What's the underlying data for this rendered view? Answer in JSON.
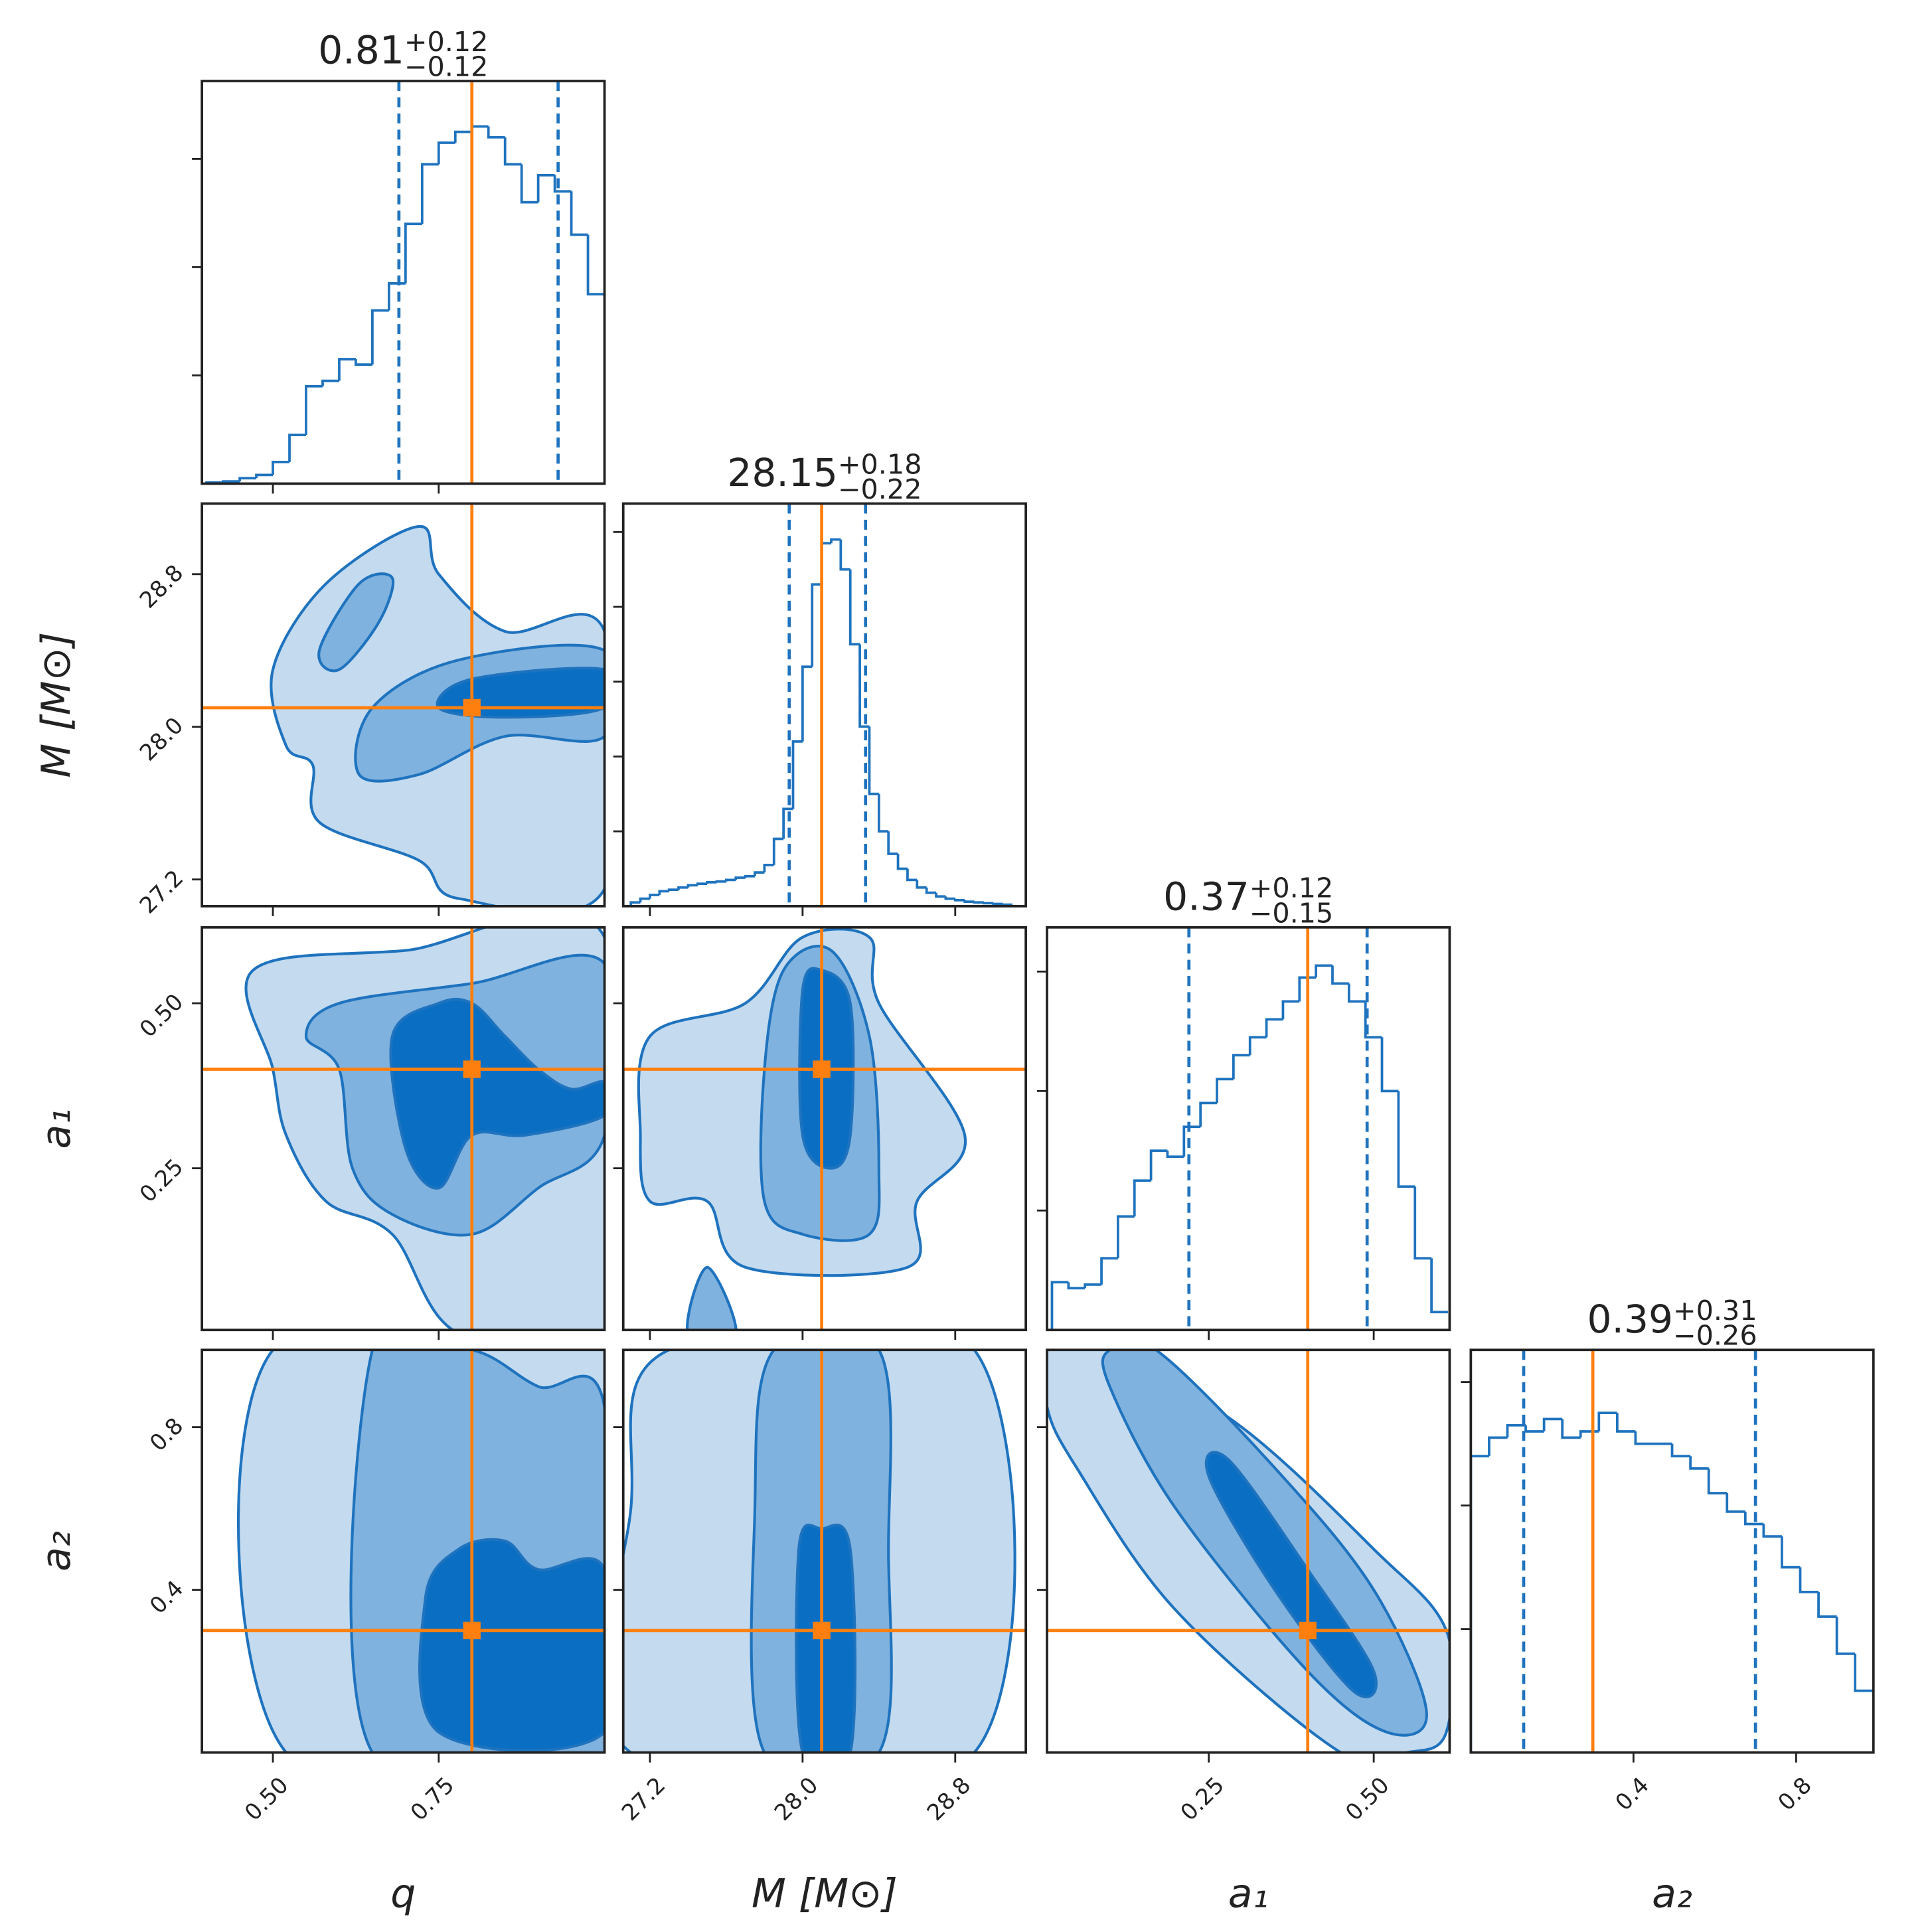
{
  "chart_data": {
    "type": "corner",
    "hist_color": "#1f73be",
    "truth_color": "#ff7f0e",
    "contour_line_color": "#1f73be",
    "contour_colors": [
      "#c3daef",
      "#7fb2de",
      "#0a6fc2"
    ],
    "parameters": [
      {
        "label": "q",
        "lim": [
          0.393,
          1.0
        ],
        "ticks": [
          {
            "value": 0.5,
            "label": "0.50"
          },
          {
            "value": 0.75,
            "label": "0.75"
          }
        ],
        "truth": 0.8
      },
      {
        "label": "M [M⊙]",
        "lim": [
          27.06,
          29.17
        ],
        "ticks": [
          27.2,
          {
            "value": 28,
            "label": "28.0"
          },
          28.8
        ],
        "truth": 28.1
      },
      {
        "label": "a₁",
        "lim": [
          0.005,
          0.615
        ],
        "ticks": [
          0.25,
          {
            "value": 0.5,
            "label": "0.50"
          }
        ],
        "truth": 0.4
      },
      {
        "label": "a₂",
        "lim": [
          0,
          0.99
        ],
        "ticks": [
          0.4,
          0.8
        ],
        "truth": 0.3
      }
    ],
    "histograms": [
      {
        "title": "0.81",
        "plus": "+0.12",
        "minus": "−0.12",
        "quantiles": [
          0.69,
          0.93
        ],
        "ylim": [
          0,
          3.72
        ],
        "yticks": [
          1,
          2,
          3
        ],
        "bins": [
          0.4,
          0.425,
          0.45,
          0.475,
          0.5,
          0.525,
          0.55,
          0.575,
          0.6,
          0.625,
          0.65,
          0.675,
          0.7,
          0.725,
          0.75,
          0.775,
          0.8,
          0.825,
          0.85,
          0.875,
          0.9,
          0.925,
          0.95,
          0.975,
          1.0
        ],
        "values": [
          0.01,
          0.02,
          0.05,
          0.08,
          0.2,
          0.45,
          0.9,
          0.95,
          1.15,
          1.1,
          1.6,
          1.85,
          2.4,
          2.95,
          3.15,
          3.25,
          3.3,
          3.2,
          2.95,
          2.6,
          2.85,
          2.7,
          2.3,
          1.75
        ]
      },
      {
        "title": "28.15",
        "plus": "+0.18",
        "minus": "−0.22",
        "quantiles": [
          27.93,
          28.33
        ],
        "ylim": [
          0,
          5.38
        ],
        "yticks": [
          1,
          2,
          3,
          4,
          5
        ],
        "bins": [
          27.1,
          27.15,
          27.2,
          27.25,
          27.3,
          27.35,
          27.4,
          27.45,
          27.5,
          27.55,
          27.6,
          27.65,
          27.7,
          27.75,
          27.8,
          27.85,
          27.9,
          27.95,
          28.0,
          28.05,
          28.1,
          28.15,
          28.2,
          28.25,
          28.3,
          28.35,
          28.4,
          28.45,
          28.5,
          28.55,
          28.6,
          28.65,
          28.7,
          28.75,
          28.8,
          28.85,
          28.9,
          28.95,
          29.0,
          29.05,
          29.1
        ],
        "values": [
          0.05,
          0.1,
          0.15,
          0.2,
          0.22,
          0.25,
          0.28,
          0.3,
          0.32,
          0.33,
          0.35,
          0.38,
          0.4,
          0.45,
          0.55,
          0.9,
          1.3,
          2.2,
          3.2,
          4.3,
          4.85,
          4.9,
          4.5,
          3.5,
          2.4,
          1.5,
          1.0,
          0.7,
          0.5,
          0.35,
          0.25,
          0.18,
          0.13,
          0.1,
          0.08,
          0.06,
          0.05,
          0.04,
          0.03,
          0.02
        ]
      },
      {
        "title": "0.37",
        "plus": "+0.12",
        "minus": "−0.15",
        "quantiles": [
          0.22,
          0.49
        ],
        "ylim": [
          0,
          3.37
        ],
        "yticks": [
          1,
          2,
          3
        ],
        "bins": [
          0.0125,
          0.0375,
          0.0625,
          0.0875,
          0.1125,
          0.1375,
          0.1625,
          0.1875,
          0.2125,
          0.2375,
          0.2625,
          0.2875,
          0.3125,
          0.3375,
          0.3625,
          0.3875,
          0.4125,
          0.4375,
          0.4625,
          0.4875,
          0.5125,
          0.5375,
          0.5625,
          0.5875,
          0.6125
        ],
        "values": [
          0.4,
          0.35,
          0.38,
          0.6,
          0.95,
          1.25,
          1.5,
          1.45,
          1.7,
          1.9,
          2.1,
          2.3,
          2.45,
          2.6,
          2.75,
          2.95,
          3.05,
          2.9,
          2.75,
          2.45,
          2.0,
          1.2,
          0.6,
          0.15
        ]
      },
      {
        "title": "0.39",
        "plus": "+0.31",
        "minus": "−0.26",
        "quantiles": [
          0.13,
          0.7
        ],
        "ylim": [
          0,
          3.26
        ],
        "yticks": [
          1,
          2,
          3
        ],
        "bins": [
          0,
          0.045,
          0.09,
          0.135,
          0.18,
          0.225,
          0.27,
          0.315,
          0.36,
          0.405,
          0.45,
          0.495,
          0.54,
          0.585,
          0.63,
          0.675,
          0.72,
          0.765,
          0.81,
          0.855,
          0.9,
          0.945,
          0.99
        ],
        "values": [
          2.4,
          2.55,
          2.65,
          2.6,
          2.7,
          2.55,
          2.6,
          2.75,
          2.6,
          2.5,
          2.5,
          2.4,
          2.3,
          2.1,
          1.95,
          1.85,
          1.75,
          1.5,
          1.3,
          1.1,
          0.8,
          0.5
        ]
      }
    ],
    "contours": [
      {
        "x_param": 0,
        "y_param": 1,
        "levels": [
          [
            {
              "x": [
                0.52,
                0.5,
                0.58,
                0.72,
                0.75,
                0.85,
                1.0,
                1.0,
                0.78,
                0.72,
                0.57,
                0.56
              ],
              "y": [
                27.9,
                28.3,
                28.75,
                29.05,
                28.8,
                28.5,
                28.5,
                27.15,
                27.1,
                27.3,
                27.5,
                27.8
              ]
            }
          ],
          [
            {
              "x": [
                0.57,
                0.63,
                0.68,
                0.66,
                0.6
              ],
              "y": [
                28.4,
                28.75,
                28.78,
                28.55,
                28.3
              ]
            },
            {
              "x": [
                0.63,
                0.65,
                0.78,
                1.0,
                1.0,
                0.85,
                0.72
              ],
              "y": [
                27.75,
                28.1,
                28.35,
                28.4,
                27.95,
                27.95,
                27.75
              ]
            }
          ],
          [
            {
              "x": [
                0.75,
                0.8,
                1.0,
                1.0,
                0.85
              ],
              "y": [
                28.1,
                28.25,
                28.3,
                28.1,
                28.05
              ]
            }
          ]
        ]
      },
      {
        "x_param": 0,
        "y_param": 2,
        "levels": [
          [
            {
              "x": [
                0.47,
                0.7,
                1.0,
                1.0,
                0.78,
                0.68,
                0.58,
                0.52,
                0.5
              ],
              "y": [
                0.55,
                0.58,
                0.6,
                0.0,
                0.0,
                0.15,
                0.2,
                0.3,
                0.4
              ]
            }
          ],
          [
            {
              "x": [
                0.55,
                0.6,
                0.8,
                1.0,
                1.0,
                0.9,
                0.8,
                0.68,
                0.62,
                0.6
              ],
              "y": [
                0.45,
                0.5,
                0.53,
                0.56,
                0.3,
                0.22,
                0.15,
                0.18,
                0.25,
                0.4
              ]
            }
          ],
          [
            {
              "x": [
                0.7,
                0.68,
                0.75,
                0.8,
                0.85,
                0.9,
                0.95,
                1.0,
                1.0,
                0.88,
                0.8,
                0.75
              ],
              "y": [
                0.28,
                0.45,
                0.5,
                0.5,
                0.45,
                0.4,
                0.37,
                0.38,
                0.33,
                0.3,
                0.3,
                0.22
              ]
            }
          ]
        ]
      },
      {
        "x_param": 0,
        "y_param": 3,
        "levels": [
          [
            {
              "x": [
                0.52,
                0.5,
                1.0,
                1.0
              ],
              "y": [
                0.0,
                0.99,
                0.99,
                0.0
              ]
            }
          ],
          [
            {
              "x": [
                0.65,
                0.65,
                0.8,
                0.9,
                1.0,
                1.0
              ],
              "y": [
                0.0,
                0.99,
                0.99,
                0.9,
                0.85,
                0.0
              ]
            }
          ],
          [
            {
              "x": [
                0.75,
                0.73,
                0.78,
                0.85,
                0.9,
                1.0,
                1.0
              ],
              "y": [
                0.05,
                0.38,
                0.5,
                0.52,
                0.45,
                0.45,
                0.05
              ]
            }
          ]
        ]
      },
      {
        "x_param": 1,
        "y_param": 2,
        "levels": [
          [
            {
              "x": [
                27.15,
                27.2,
                27.7,
                28.0,
                28.35,
                28.4,
                28.85,
                28.6,
                28.55,
                27.7,
                27.5,
                27.2
              ],
              "y": [
                0.3,
                0.45,
                0.5,
                0.6,
                0.6,
                0.5,
                0.3,
                0.2,
                0.1,
                0.1,
                0.2,
                0.2
              ]
            }
          ],
          [
            {
              "x": [
                27.8,
                27.9,
                28.15,
                28.35,
                28.4,
                28.35,
                28.0,
                27.8
              ],
              "y": [
                0.4,
                0.55,
                0.58,
                0.45,
                0.25,
                0.15,
                0.15,
                0.2
              ]
            },
            {
              "x": [
                27.4,
                27.5,
                27.65
              ],
              "y": [
                0.0,
                0.1,
                0.0
              ]
            }
          ],
          [
            {
              "x": [
                28.0,
                28.0,
                28.1,
                28.25,
                28.25,
                28.15
              ],
              "y": [
                0.3,
                0.52,
                0.55,
                0.5,
                0.3,
                0.25
              ]
            }
          ]
        ]
      },
      {
        "x_param": 1,
        "y_param": 3,
        "levels": [
          [
            {
              "x": [
                27.1,
                27.1,
                27.3,
                28.9,
                28.9
              ],
              "y": [
                0.0,
                0.6,
                0.99,
                0.99,
                0.0
              ]
            }
          ],
          [
            {
              "x": [
                27.8,
                27.75,
                27.85,
                28.4,
                28.45,
                28.4
              ],
              "y": [
                0.0,
                0.6,
                0.99,
                0.99,
                0.5,
                0.0
              ]
            }
          ],
          [
            {
              "x": [
                28.0,
                27.98,
                28.1,
                28.25,
                28.25
              ],
              "y": [
                0.0,
                0.5,
                0.55,
                0.5,
                0.0
              ]
            }
          ]
        ]
      },
      {
        "x_param": 2,
        "y_param": 3,
        "levels": [
          [
            {
              "x": [
                0.005,
                0.005,
                0.1,
                0.3,
                0.5,
                0.61,
                0.61,
                0.55,
                0.45,
                0.2,
                0.05
              ],
              "y": [
                0.85,
                0.99,
                0.99,
                0.8,
                0.5,
                0.3,
                0.05,
                0.0,
                0.0,
                0.35,
                0.7
              ]
            }
          ],
          [
            {
              "x": [
                0.1,
                0.17,
                0.35,
                0.5,
                0.58,
                0.52,
                0.4,
                0.2,
                0.1
              ],
              "y": [
                0.99,
                0.99,
                0.7,
                0.4,
                0.1,
                0.05,
                0.2,
                0.6,
                0.9
              ]
            }
          ],
          [
            {
              "x": [
                0.25,
                0.28,
                0.4,
                0.5,
                0.47,
                0.35
              ],
              "y": [
                0.68,
                0.72,
                0.45,
                0.2,
                0.15,
                0.4
              ]
            }
          ]
        ]
      }
    ]
  }
}
